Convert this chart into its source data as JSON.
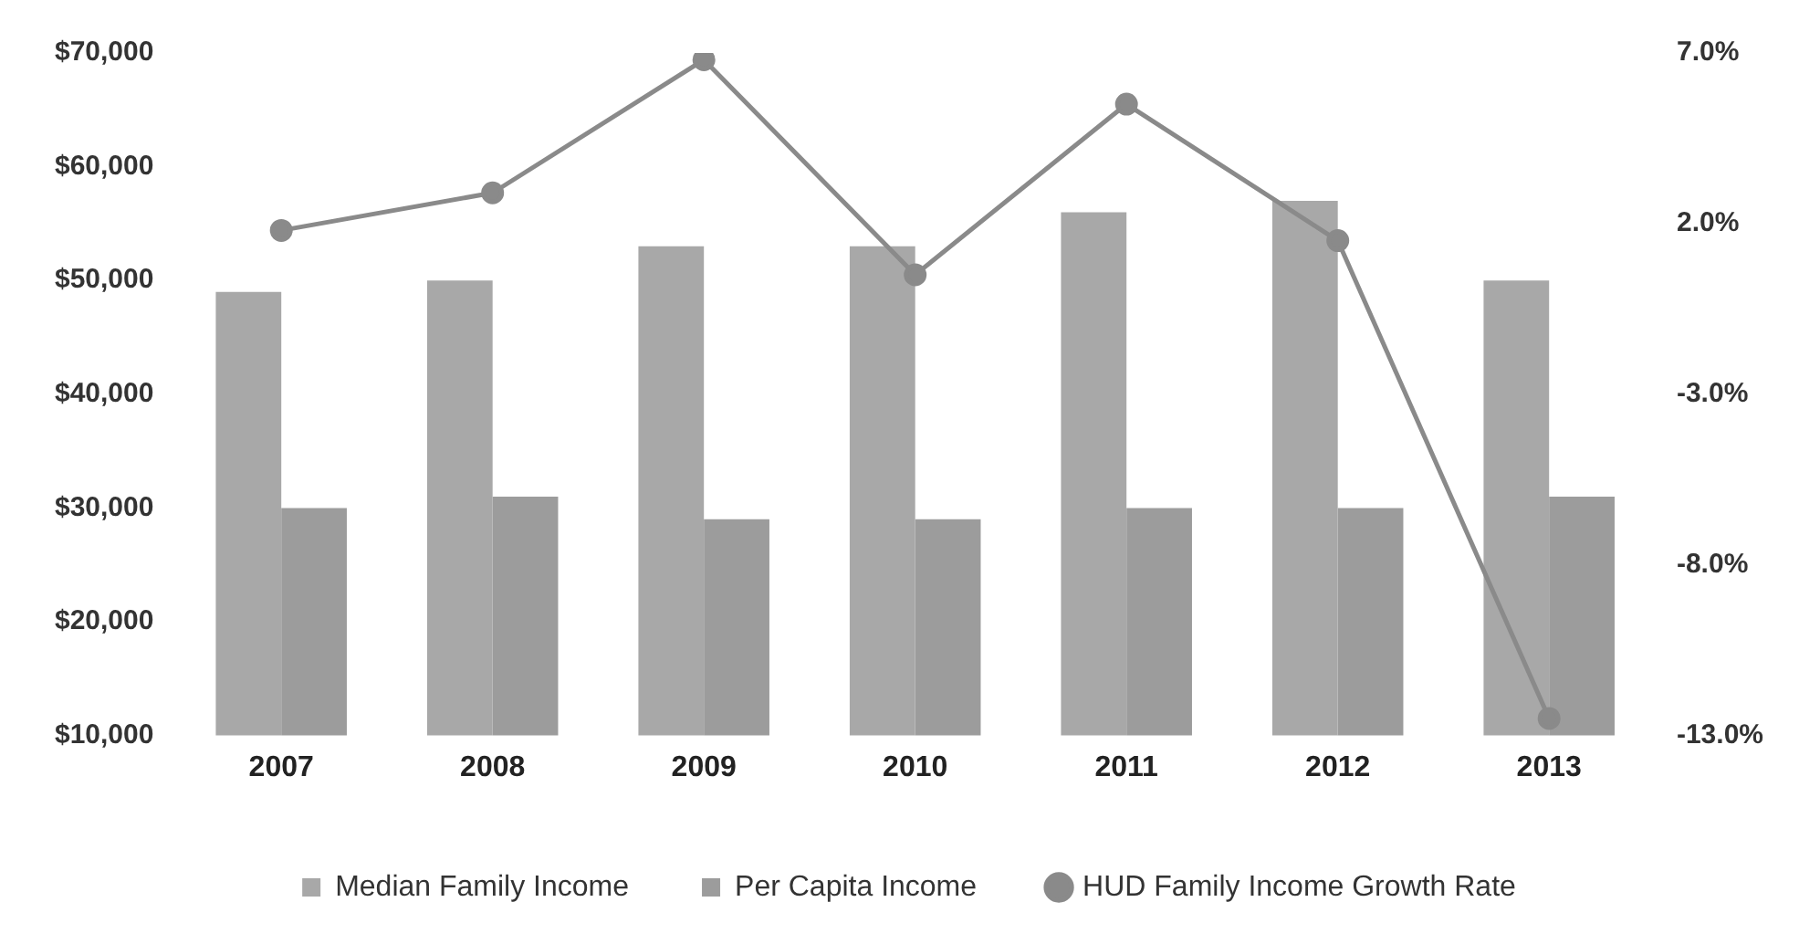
{
  "chart_data": {
    "type": "bar",
    "categories": [
      "2007",
      "2008",
      "2009",
      "2010",
      "2011",
      "2012",
      "2013"
    ],
    "series": [
      {
        "name": "Median Family Income",
        "color": "#a8a8a8",
        "values": [
          49000,
          50000,
          53000,
          53000,
          56000,
          57000,
          50000
        ]
      },
      {
        "name": "Per Capita Income",
        "color": "#9c9c9c",
        "values": [
          30000,
          31000,
          29000,
          29000,
          30000,
          30000,
          31000
        ]
      },
      {
        "name": "HUD Family Income Growth Rate",
        "type": "line",
        "axis": "y2",
        "color": "#8a8a8a",
        "marker": "circle",
        "values": [
          1.8,
          2.9,
          6.8,
          0.5,
          5.5,
          1.5,
          -12.5
        ]
      }
    ],
    "ylim": [
      10000,
      70000
    ],
    "yticks": [
      {
        "value": 10000,
        "label": "$10,000"
      },
      {
        "value": 20000,
        "label": "$20,000"
      },
      {
        "value": 30000,
        "label": "$30,000"
      },
      {
        "value": 40000,
        "label": "$40,000"
      },
      {
        "value": 50000,
        "label": "$50,000"
      },
      {
        "value": 60000,
        "label": "$60,000"
      },
      {
        "value": 70000,
        "label": "$70,000"
      }
    ],
    "y2lim": [
      -13,
      7
    ],
    "y2ticks": [
      {
        "value": -13,
        "label": "-13.0%"
      },
      {
        "value": -8,
        "label": "-8.0%"
      },
      {
        "value": -3,
        "label": "-3.0%"
      },
      {
        "value": 2,
        "label": "2.0%"
      },
      {
        "value": 7,
        "label": "7.0%"
      }
    ],
    "grid": false,
    "legend": "bottom"
  }
}
